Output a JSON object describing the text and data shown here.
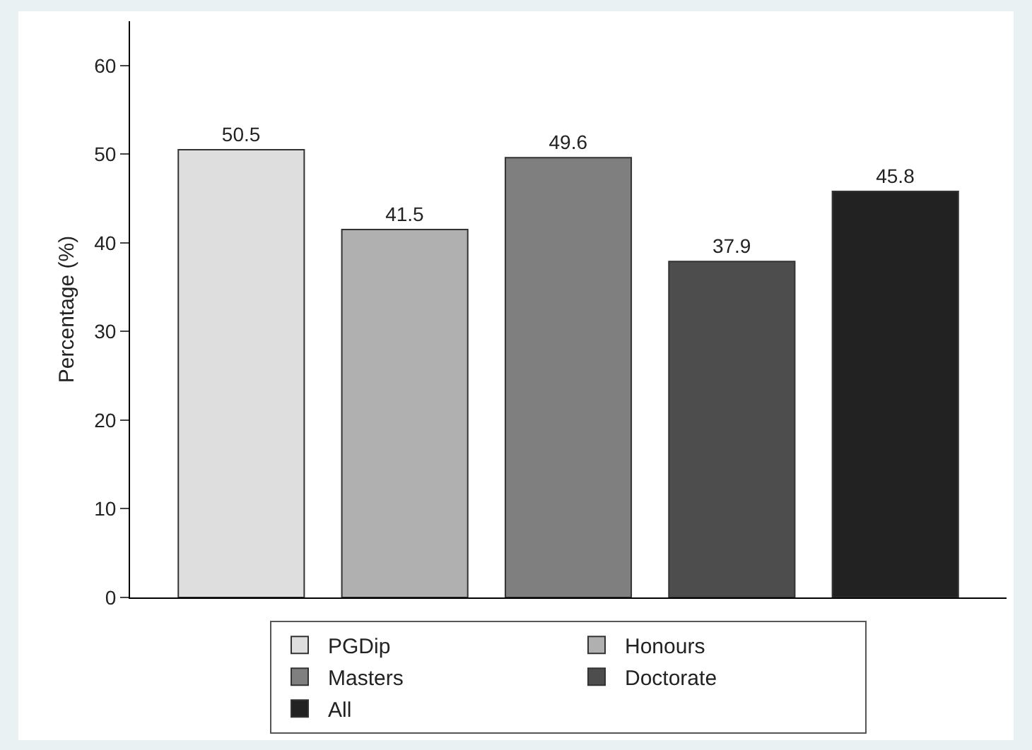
{
  "chart_data": {
    "type": "bar",
    "ylabel": "Percentage (%)",
    "categories": [
      null,
      null,
      null,
      null,
      null
    ],
    "series": [
      {
        "name": "PGDip",
        "color": "#dedede",
        "values": [
          50.5,
          null,
          null,
          null,
          null
        ]
      },
      {
        "name": "Honours",
        "color": "#b0b0b0",
        "values": [
          null,
          41.5,
          null,
          null,
          null
        ]
      },
      {
        "name": "Masters",
        "color": "#7f7f7f",
        "values": [
          null,
          null,
          49.6,
          null,
          null
        ]
      },
      {
        "name": "Doctorate",
        "color": "#4d4d4d",
        "values": [
          null,
          null,
          null,
          37.9,
          null
        ]
      },
      {
        "name": "All",
        "color": "#222222",
        "values": [
          null,
          null,
          null,
          null,
          45.8
        ]
      }
    ],
    "ylim": [
      0,
      65
    ],
    "yticks": [
      0,
      10,
      20,
      30,
      40,
      50,
      60
    ],
    "grid": false,
    "legend": "bottom",
    "data_labels": true
  }
}
